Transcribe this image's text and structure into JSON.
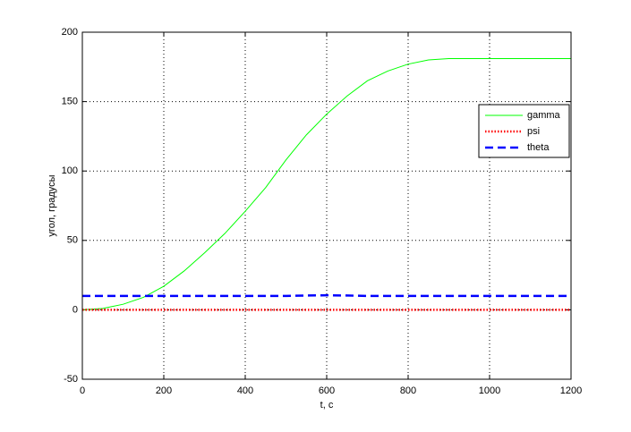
{
  "chart_data": {
    "type": "line",
    "xlabel": "t, c",
    "ylabel": "угол, градусы",
    "x": [
      0,
      50,
      100,
      150,
      200,
      250,
      300,
      350,
      400,
      450,
      500,
      550,
      600,
      650,
      700,
      750,
      800,
      850,
      900,
      950,
      1000,
      1050,
      1100,
      1150,
      1200
    ],
    "series": [
      {
        "name": "gamma",
        "color": "#00ff00",
        "style": "solid",
        "values": [
          0,
          1,
          4,
          9,
          17,
          28,
          41,
          55,
          71,
          88,
          108,
          126,
          141,
          154,
          165,
          172,
          177,
          180,
          181,
          181,
          181,
          181,
          181,
          181,
          181
        ]
      },
      {
        "name": "psi",
        "color": "#ff0000",
        "style": "dotted",
        "values": [
          0,
          0,
          0,
          0,
          0,
          0,
          0,
          0,
          0,
          0,
          0,
          0,
          0,
          0,
          0,
          0,
          0,
          0,
          0,
          0,
          0,
          0,
          0,
          0,
          0
        ]
      },
      {
        "name": "theta",
        "color": "#0000ff",
        "style": "dashed",
        "values": [
          10,
          10,
          10,
          10,
          10,
          10,
          10,
          10,
          10,
          10,
          10,
          10.3,
          10.5,
          10.3,
          10,
          10,
          10,
          10,
          10,
          10,
          10,
          10,
          10,
          10,
          10
        ]
      }
    ],
    "xlim": [
      0,
      1200
    ],
    "xticks": [
      0,
      200,
      400,
      600,
      800,
      1000,
      1200
    ],
    "ylim": [
      -50,
      200
    ],
    "yticks": [
      -50,
      0,
      50,
      100,
      150,
      200
    ],
    "grid": true,
    "legend": "upper right"
  }
}
